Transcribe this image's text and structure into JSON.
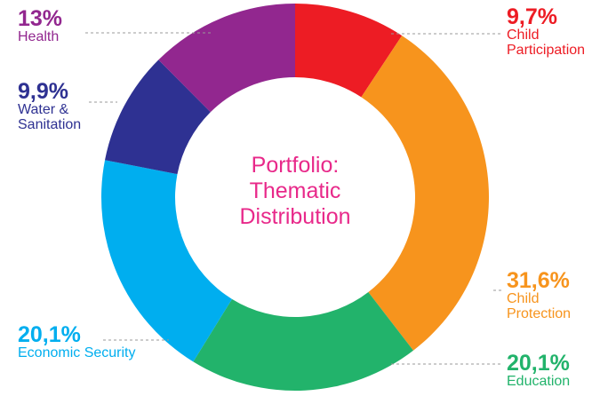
{
  "chart_data": {
    "type": "pie",
    "donut": true,
    "title": "Portfolio: Thematic Distribution",
    "categories": [
      "Child Participation",
      "Child Protection",
      "Education",
      "Economic Security",
      "Water & Sanitation",
      "Health"
    ],
    "values": [
      9.7,
      31.6,
      20.1,
      20.1,
      9.9,
      13
    ],
    "value_labels": [
      "9,7%",
      "31,6%",
      "20,1%",
      "20,1%",
      "9,9%",
      "13%"
    ],
    "colors": [
      "#ed1c24",
      "#f7941d",
      "#22b36b",
      "#00aeef",
      "#2e3192",
      "#92278f"
    ]
  }
}
